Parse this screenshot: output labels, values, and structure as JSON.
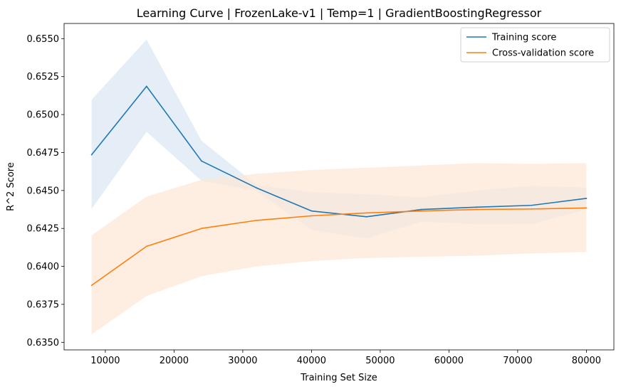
{
  "chart_data": {
    "type": "line",
    "title": "Learning Curve | FrozenLake-v1 | Temp=1 | GradientBoostingRegressor",
    "xlabel": "Training Set Size",
    "ylabel": "R^2 Score",
    "xlim": [
      4000,
      84000
    ],
    "ylim": [
      0.6345,
      0.656
    ],
    "x_ticks": [
      10000,
      20000,
      30000,
      40000,
      50000,
      60000,
      70000,
      80000
    ],
    "x_tick_labels": [
      "10000",
      "20000",
      "30000",
      "40000",
      "50000",
      "60000",
      "70000",
      "80000"
    ],
    "y_ticks": [
      0.635,
      0.6375,
      0.64,
      0.6425,
      0.645,
      0.6475,
      0.65,
      0.6525,
      0.655
    ],
    "y_tick_labels": [
      "0.6350",
      "0.6375",
      "0.6400",
      "0.6425",
      "0.6450",
      "0.6475",
      "0.6500",
      "0.6525",
      "0.6550"
    ],
    "grid": false,
    "legend_position": "top-right",
    "x": [
      8000,
      16000,
      24000,
      32000,
      40000,
      48000,
      56000,
      64000,
      72000,
      80000
    ],
    "series": [
      {
        "name": "Training score",
        "color": "#1f77b4",
        "band_color": "#dce8f4",
        "values": [
          0.64735,
          0.65186,
          0.64694,
          0.64517,
          0.64365,
          0.64327,
          0.64375,
          0.6439,
          0.64402,
          0.64448
        ],
        "band_lower": [
          0.64378,
          0.64886,
          0.64564,
          0.64497,
          0.6424,
          0.64183,
          0.64295,
          0.64277,
          0.64278,
          0.64375
        ],
        "band_upper": [
          0.65098,
          0.65494,
          0.64828,
          0.64537,
          0.6449,
          0.64475,
          0.64455,
          0.645,
          0.6453,
          0.6452
        ]
      },
      {
        "name": "Cross-validation score",
        "color": "#ff7f0e",
        "band_color": "#fde7d5",
        "values": [
          0.63875,
          0.64132,
          0.6425,
          0.64303,
          0.64333,
          0.64352,
          0.64365,
          0.64375,
          0.64378,
          0.64385
        ],
        "band_lower": [
          0.63552,
          0.63805,
          0.63935,
          0.64,
          0.64035,
          0.64055,
          0.64063,
          0.6407,
          0.64085,
          0.64095
        ],
        "band_upper": [
          0.64205,
          0.6446,
          0.6457,
          0.6461,
          0.64635,
          0.6465,
          0.64665,
          0.6468,
          0.64675,
          0.6468
        ]
      }
    ]
  }
}
